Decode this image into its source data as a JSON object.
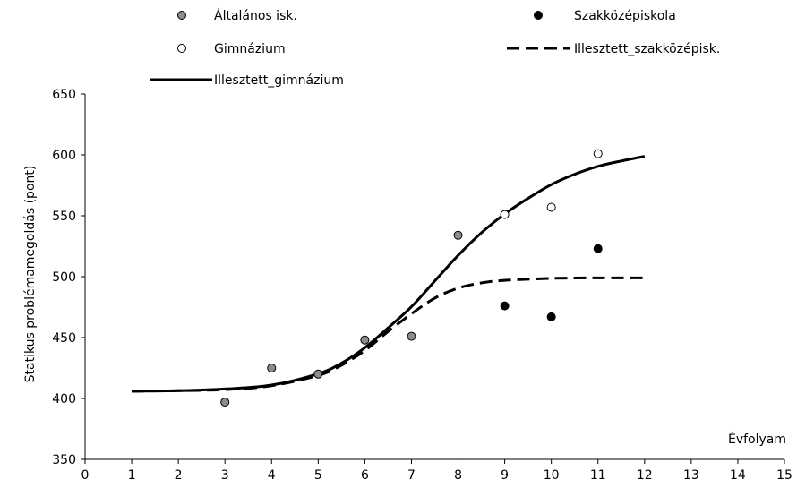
{
  "chart_data": {
    "type": "scatter",
    "title": "",
    "xlabel": "Évfolyam",
    "ylabel": "Statikus problémamegoldás (pont)",
    "xlim": [
      0,
      15
    ],
    "ylim": [
      350,
      650
    ],
    "x_ticks": [
      0,
      1,
      2,
      3,
      4,
      5,
      6,
      7,
      8,
      9,
      10,
      11,
      12,
      13,
      14,
      15
    ],
    "y_ticks": [
      350,
      400,
      450,
      500,
      550,
      600,
      650
    ],
    "grid": false,
    "legend_position": "top",
    "series": [
      {
        "name": "Általános isk.",
        "kind": "points",
        "marker": "gray-filled",
        "color": "#8c8c8c",
        "points": [
          [
            3,
            397
          ],
          [
            4,
            425
          ],
          [
            5,
            420
          ],
          [
            6,
            448
          ],
          [
            7,
            451
          ],
          [
            8,
            534
          ]
        ]
      },
      {
        "name": "Szakközépiskola",
        "kind": "points",
        "marker": "black-filled",
        "color": "#000000",
        "points": [
          [
            9,
            476
          ],
          [
            10,
            467
          ],
          [
            11,
            523
          ]
        ]
      },
      {
        "name": "Gimnázium",
        "kind": "points",
        "marker": "hollow",
        "color": "#000000",
        "points": [
          [
            9,
            551
          ],
          [
            10,
            557
          ],
          [
            11,
            601
          ]
        ]
      },
      {
        "name": "Illesztett_szakközépisk.",
        "kind": "line",
        "style": "dashed",
        "color": "#000000",
        "points": [
          [
            1,
            406
          ],
          [
            2,
            406.4
          ],
          [
            3,
            407.3
          ],
          [
            4,
            410.5
          ],
          [
            5,
            418.9
          ],
          [
            5.5,
            427.3
          ],
          [
            6,
            439.4
          ],
          [
            6.5,
            455
          ],
          [
            7,
            469.5
          ],
          [
            7.5,
            482.4
          ],
          [
            8,
            490.6
          ],
          [
            8.5,
            494.9
          ],
          [
            9,
            497
          ],
          [
            10,
            498.6
          ],
          [
            11,
            499
          ],
          [
            12,
            499
          ]
        ]
      },
      {
        "name": "Illesztett_gimnázium",
        "kind": "line",
        "style": "solid",
        "color": "#000000",
        "points": [
          [
            1,
            406
          ],
          [
            2,
            406.4
          ],
          [
            3,
            407.8
          ],
          [
            4,
            411
          ],
          [
            5,
            420.3
          ],
          [
            5.5,
            429
          ],
          [
            6,
            441.7
          ],
          [
            6.5,
            458
          ],
          [
            7,
            475.3
          ],
          [
            7.5,
            496.4
          ],
          [
            8,
            517.4
          ],
          [
            8.5,
            536
          ],
          [
            9,
            551.5
          ],
          [
            9.5,
            564.3
          ],
          [
            10,
            575.6
          ],
          [
            10.5,
            584.1
          ],
          [
            11,
            590.6
          ],
          [
            11.5,
            595
          ],
          [
            12,
            598.8
          ]
        ]
      }
    ]
  }
}
